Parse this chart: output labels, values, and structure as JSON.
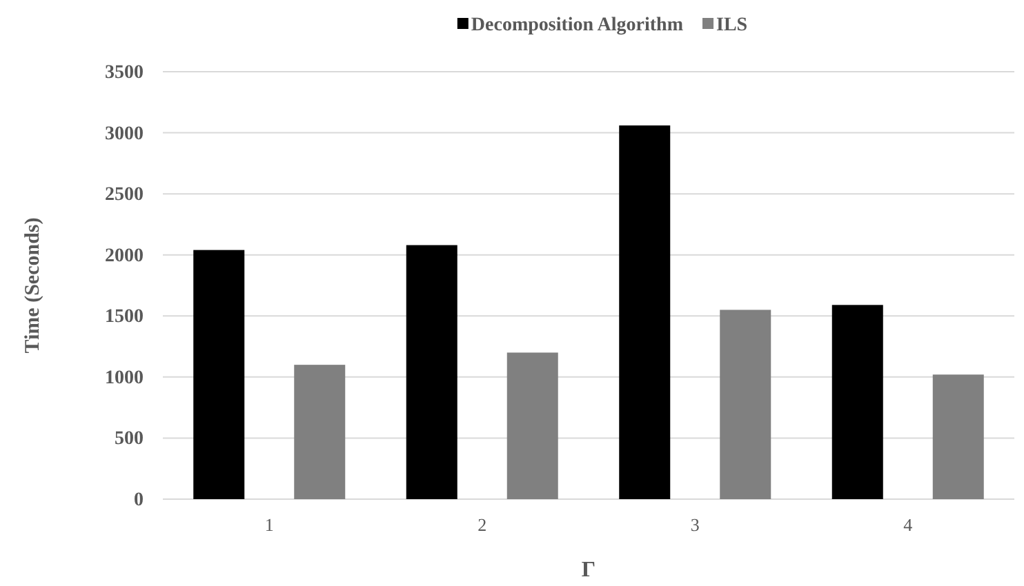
{
  "chart_data": {
    "type": "bar",
    "xlabel": "Γ",
    "ylabel": "Time (Seconds)",
    "categories": [
      "1",
      "2",
      "3",
      "4"
    ],
    "series": [
      {
        "name": "Decomposition Algorithm",
        "color": "#000000",
        "values": [
          2040,
          2080,
          3060,
          1590
        ]
      },
      {
        "name": "ILS",
        "color": "#808080",
        "values": [
          1100,
          1200,
          1550,
          1020
        ]
      }
    ],
    "ylim": [
      0,
      3500
    ],
    "yticks": [
      0,
      500,
      1000,
      1500,
      2000,
      2500,
      3000,
      3500
    ],
    "grid": "y",
    "legend": "top"
  }
}
